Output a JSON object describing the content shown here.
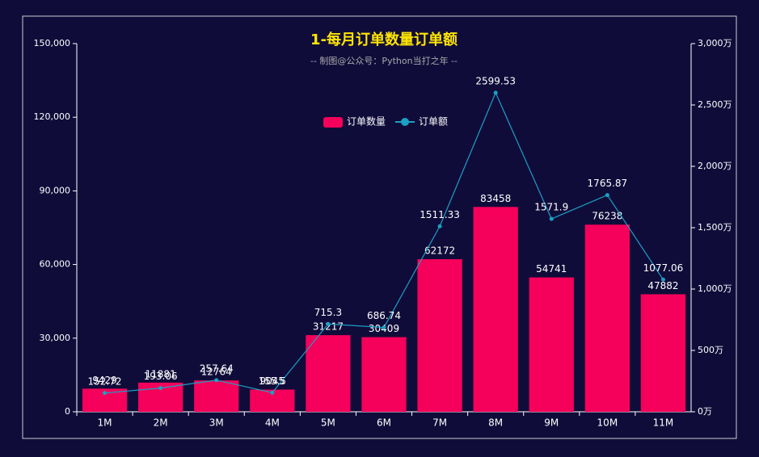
{
  "chart_data": {
    "type": "bar",
    "title": "1-每月订单数量订单额",
    "subtitle": "-- 制图@公众号：Python当打之年 --",
    "categories": [
      "1M",
      "2M",
      "3M",
      "4M",
      "5M",
      "6M",
      "7M",
      "8M",
      "9M",
      "10M",
      "11M"
    ],
    "series": [
      {
        "name": "订单数量",
        "type": "bar",
        "color": "#f5005a",
        "values": [
          9429,
          11881,
          12764,
          9045,
          31217,
          30409,
          62172,
          83458,
          54741,
          76238,
          47882
        ]
      },
      {
        "name": "订单额",
        "type": "line",
        "axis": "y2",
        "color": "#1ba1c4",
        "values": [
          152.72,
          193.06,
          257.64,
          155.5,
          715.3,
          686.74,
          1511.33,
          2599.53,
          1571.9,
          1765.87,
          1077.06
        ]
      }
    ],
    "ylim": [
      0,
      150000
    ],
    "yticks": [
      0,
      {
        "value": 30000,
        "label": "30,000"
      },
      {
        "value": 60000,
        "label": "60,000"
      },
      {
        "value": 90000,
        "label": "90,000"
      },
      {
        "value": 120000,
        "label": "120,000"
      },
      {
        "value": 150000,
        "label": "150,000"
      }
    ],
    "y2lim": [
      0,
      3000
    ],
    "y2ticks": [
      {
        "value": 0,
        "label": "0万"
      },
      {
        "value": 500,
        "label": "500万"
      },
      {
        "value": 1000,
        "label": "1,000万"
      },
      {
        "value": 1500,
        "label": "1,500万"
      },
      {
        "value": 2000,
        "label": "2,000万"
      },
      {
        "value": 2500,
        "label": "2,500万"
      },
      {
        "value": 3000,
        "label": "3,000万"
      }
    ]
  }
}
